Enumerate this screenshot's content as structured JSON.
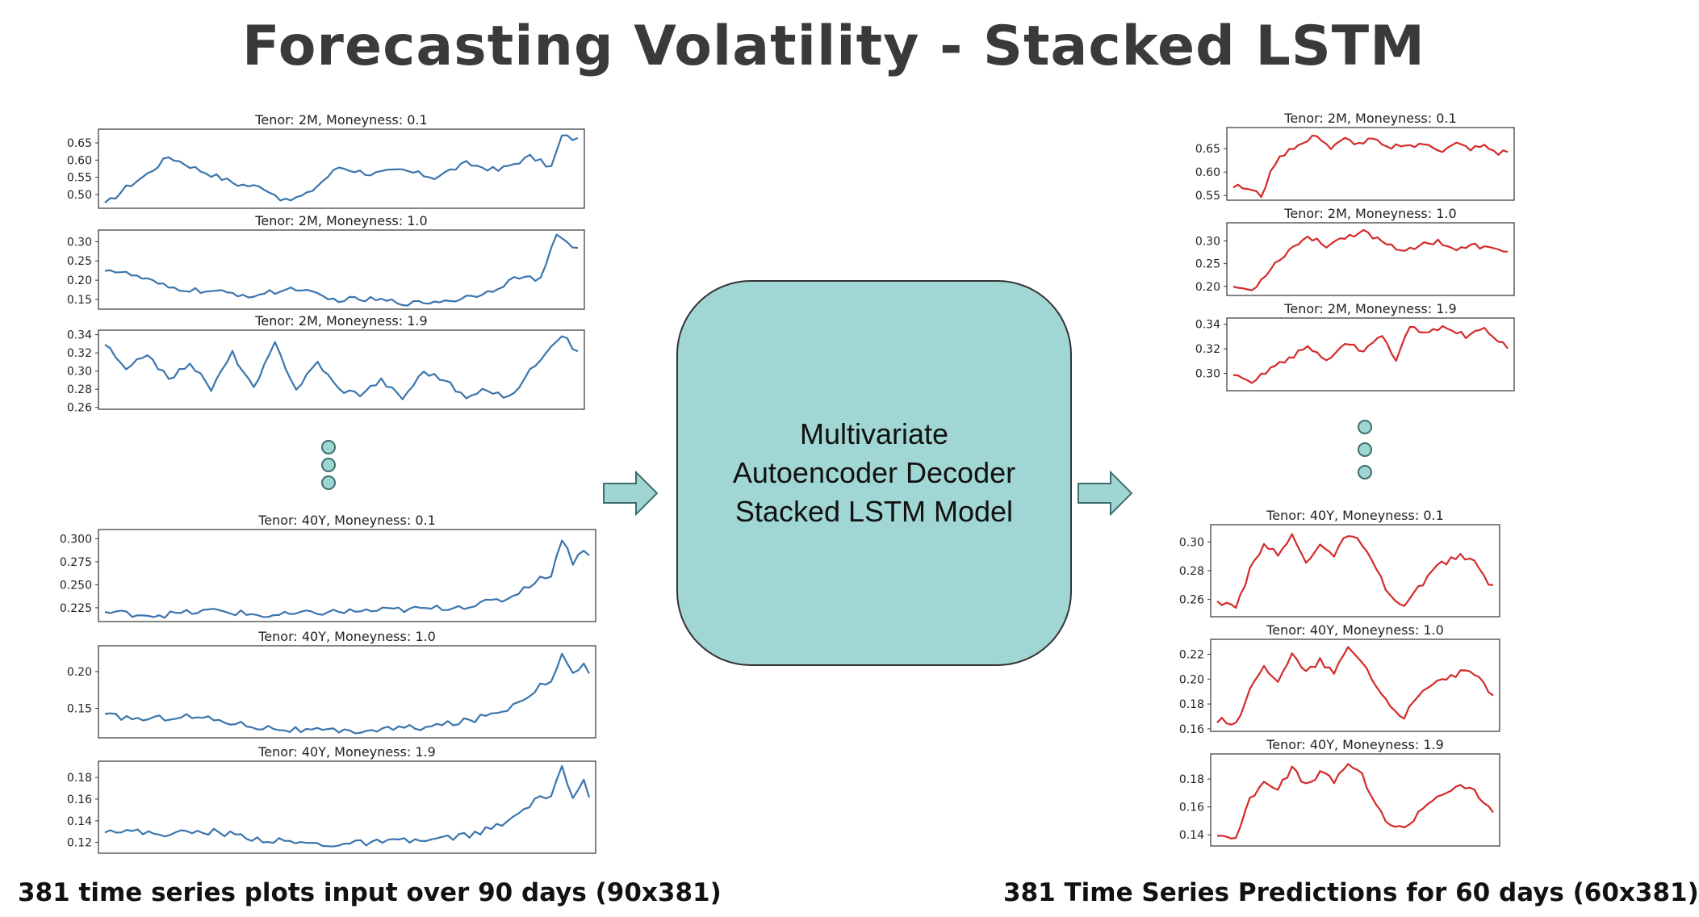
{
  "title": "Forecasting Volatility - Stacked LSTM",
  "model_label_lines": [
    "Multivariate",
    "Autoencoder Decoder",
    "Stacked LSTM Model"
  ],
  "caption_left": "381 time series plots input over 90 days (90x381)",
  "caption_right": "381 Time Series Predictions for 60 days (60x381)",
  "colors": {
    "input_line": "#3b75ad",
    "prediction_line": "#d42a2a",
    "model_fill": "#a0d6d3",
    "dot_fill": "#9fd6d4"
  },
  "chart_data": [
    {
      "type": "line",
      "group": "input",
      "title": "Tenor: 2M, Moneyness: 0.1",
      "yticks": [
        "0.50",
        "0.55",
        "0.60",
        "0.65"
      ],
      "ylim": [
        0.46,
        0.69
      ],
      "n": 90,
      "keys": [
        [
          0,
          0.47
        ],
        [
          4,
          0.52
        ],
        [
          8,
          0.56
        ],
        [
          12,
          0.61
        ],
        [
          18,
          0.57
        ],
        [
          25,
          0.53
        ],
        [
          30,
          0.52
        ],
        [
          34,
          0.48
        ],
        [
          38,
          0.5
        ],
        [
          44,
          0.58
        ],
        [
          50,
          0.56
        ],
        [
          56,
          0.57
        ],
        [
          62,
          0.55
        ],
        [
          68,
          0.59
        ],
        [
          74,
          0.57
        ],
        [
          80,
          0.61
        ],
        [
          84,
          0.58
        ],
        [
          86,
          0.67
        ],
        [
          89,
          0.66
        ]
      ]
    },
    {
      "type": "line",
      "group": "input",
      "title": "Tenor: 2M, Moneyness: 1.0",
      "yticks": [
        "0.15",
        "0.20",
        "0.25",
        "0.30"
      ],
      "ylim": [
        0.125,
        0.33
      ],
      "n": 90,
      "keys": [
        [
          0,
          0.23
        ],
        [
          6,
          0.21
        ],
        [
          12,
          0.18
        ],
        [
          20,
          0.17
        ],
        [
          28,
          0.16
        ],
        [
          36,
          0.18
        ],
        [
          42,
          0.15
        ],
        [
          50,
          0.15
        ],
        [
          58,
          0.14
        ],
        [
          66,
          0.15
        ],
        [
          72,
          0.17
        ],
        [
          78,
          0.21
        ],
        [
          82,
          0.2
        ],
        [
          85,
          0.32
        ],
        [
          89,
          0.28
        ]
      ]
    },
    {
      "type": "line",
      "group": "input",
      "title": "Tenor: 2M, Moneyness: 1.9",
      "yticks": [
        "0.26",
        "0.28",
        "0.30",
        "0.32",
        "0.34"
      ],
      "ylim": [
        0.258,
        0.345
      ],
      "n": 90,
      "keys": [
        [
          0,
          0.33
        ],
        [
          4,
          0.3
        ],
        [
          8,
          0.32
        ],
        [
          12,
          0.29
        ],
        [
          16,
          0.31
        ],
        [
          20,
          0.28
        ],
        [
          24,
          0.32
        ],
        [
          28,
          0.28
        ],
        [
          32,
          0.33
        ],
        [
          36,
          0.28
        ],
        [
          40,
          0.31
        ],
        [
          44,
          0.28
        ],
        [
          48,
          0.275
        ],
        [
          52,
          0.29
        ],
        [
          56,
          0.27
        ],
        [
          60,
          0.3
        ],
        [
          64,
          0.29
        ],
        [
          68,
          0.27
        ],
        [
          72,
          0.28
        ],
        [
          76,
          0.27
        ],
        [
          80,
          0.3
        ],
        [
          84,
          0.33
        ],
        [
          86,
          0.34
        ],
        [
          89,
          0.32
        ]
      ]
    },
    {
      "type": "line",
      "group": "input",
      "title": "Tenor: 40Y, Moneyness: 0.1",
      "yticks": [
        "0.225",
        "0.250",
        "0.275",
        "0.300"
      ],
      "ylim": [
        0.21,
        0.31
      ],
      "n": 90,
      "keys": [
        [
          0,
          0.22
        ],
        [
          10,
          0.217
        ],
        [
          20,
          0.222
        ],
        [
          30,
          0.216
        ],
        [
          40,
          0.22
        ],
        [
          50,
          0.222
        ],
        [
          60,
          0.224
        ],
        [
          68,
          0.228
        ],
        [
          74,
          0.235
        ],
        [
          78,
          0.25
        ],
        [
          82,
          0.262
        ],
        [
          84,
          0.3
        ],
        [
          86,
          0.275
        ],
        [
          88,
          0.29
        ],
        [
          89,
          0.28
        ]
      ]
    },
    {
      "type": "line",
      "group": "input",
      "title": "Tenor: 40Y, Moneyness: 1.0",
      "yticks": [
        "0.15",
        "0.20"
      ],
      "ylim": [
        0.11,
        0.235
      ],
      "n": 90,
      "keys": [
        [
          0,
          0.14
        ],
        [
          8,
          0.135
        ],
        [
          14,
          0.14
        ],
        [
          20,
          0.135
        ],
        [
          28,
          0.125
        ],
        [
          36,
          0.12
        ],
        [
          44,
          0.118
        ],
        [
          52,
          0.122
        ],
        [
          60,
          0.125
        ],
        [
          68,
          0.135
        ],
        [
          74,
          0.15
        ],
        [
          78,
          0.17
        ],
        [
          82,
          0.19
        ],
        [
          84,
          0.225
        ],
        [
          86,
          0.195
        ],
        [
          88,
          0.215
        ],
        [
          89,
          0.195
        ]
      ]
    },
    {
      "type": "line",
      "group": "input",
      "title": "Tenor: 40Y, Moneyness: 1.9",
      "yticks": [
        "0.12",
        "0.14",
        "0.16",
        "0.18"
      ],
      "ylim": [
        0.11,
        0.195
      ],
      "n": 90,
      "keys": [
        [
          0,
          0.132
        ],
        [
          10,
          0.128
        ],
        [
          20,
          0.13
        ],
        [
          30,
          0.122
        ],
        [
          40,
          0.118
        ],
        [
          50,
          0.12
        ],
        [
          60,
          0.122
        ],
        [
          68,
          0.128
        ],
        [
          74,
          0.138
        ],
        [
          78,
          0.155
        ],
        [
          82,
          0.165
        ],
        [
          84,
          0.19
        ],
        [
          86,
          0.16
        ],
        [
          88,
          0.175
        ],
        [
          89,
          0.16
        ]
      ]
    },
    {
      "type": "line",
      "group": "prediction",
      "title": "Tenor: 2M, Moneyness: 0.1",
      "yticks": [
        "0.55",
        "0.60",
        "0.65"
      ],
      "ylim": [
        0.54,
        0.695
      ],
      "n": 60,
      "keys": [
        [
          0,
          0.57
        ],
        [
          3,
          0.565
        ],
        [
          6,
          0.55
        ],
        [
          9,
          0.62
        ],
        [
          12,
          0.65
        ],
        [
          15,
          0.66
        ],
        [
          18,
          0.68
        ],
        [
          21,
          0.65
        ],
        [
          24,
          0.67
        ],
        [
          27,
          0.66
        ],
        [
          30,
          0.67
        ],
        [
          33,
          0.65
        ],
        [
          36,
          0.66
        ],
        [
          39,
          0.655
        ],
        [
          42,
          0.66
        ],
        [
          45,
          0.645
        ],
        [
          48,
          0.66
        ],
        [
          51,
          0.65
        ],
        [
          54,
          0.655
        ],
        [
          57,
          0.64
        ],
        [
          59,
          0.645
        ]
      ]
    },
    {
      "type": "line",
      "group": "prediction",
      "title": "Tenor: 2M, Moneyness: 1.0",
      "yticks": [
        "0.20",
        "0.25",
        "0.30"
      ],
      "ylim": [
        0.18,
        0.34
      ],
      "n": 60,
      "keys": [
        [
          0,
          0.2
        ],
        [
          4,
          0.19
        ],
        [
          8,
          0.24
        ],
        [
          12,
          0.28
        ],
        [
          16,
          0.31
        ],
        [
          20,
          0.29
        ],
        [
          24,
          0.31
        ],
        [
          28,
          0.32
        ],
        [
          32,
          0.3
        ],
        [
          36,
          0.28
        ],
        [
          40,
          0.29
        ],
        [
          44,
          0.3
        ],
        [
          48,
          0.28
        ],
        [
          52,
          0.29
        ],
        [
          56,
          0.28
        ],
        [
          59,
          0.28
        ]
      ]
    },
    {
      "type": "line",
      "group": "prediction",
      "title": "Tenor: 2M, Moneyness: 1.9",
      "yticks": [
        "0.30",
        "0.32",
        "0.34"
      ],
      "ylim": [
        0.286,
        0.345
      ],
      "n": 60,
      "keys": [
        [
          0,
          0.298
        ],
        [
          4,
          0.292
        ],
        [
          8,
          0.305
        ],
        [
          12,
          0.312
        ],
        [
          16,
          0.322
        ],
        [
          20,
          0.31
        ],
        [
          24,
          0.325
        ],
        [
          28,
          0.318
        ],
        [
          32,
          0.332
        ],
        [
          35,
          0.31
        ],
        [
          38,
          0.338
        ],
        [
          42,
          0.333
        ],
        [
          46,
          0.338
        ],
        [
          50,
          0.33
        ],
        [
          54,
          0.336
        ],
        [
          59,
          0.322
        ]
      ]
    },
    {
      "type": "line",
      "group": "prediction",
      "title": "Tenor: 40Y, Moneyness: 0.1",
      "yticks": [
        "0.26",
        "0.28",
        "0.30"
      ],
      "ylim": [
        0.248,
        0.312
      ],
      "n": 60,
      "keys": [
        [
          0,
          0.257
        ],
        [
          4,
          0.254
        ],
        [
          7,
          0.28
        ],
        [
          10,
          0.3
        ],
        [
          13,
          0.29
        ],
        [
          16,
          0.305
        ],
        [
          19,
          0.285
        ],
        [
          22,
          0.3
        ],
        [
          25,
          0.29
        ],
        [
          28,
          0.306
        ],
        [
          31,
          0.298
        ],
        [
          34,
          0.28
        ],
        [
          37,
          0.262
        ],
        [
          40,
          0.255
        ],
        [
          44,
          0.272
        ],
        [
          48,
          0.285
        ],
        [
          52,
          0.29
        ],
        [
          55,
          0.286
        ],
        [
          59,
          0.268
        ]
      ]
    },
    {
      "type": "line",
      "group": "prediction",
      "title": "Tenor: 40Y, Moneyness: 1.0",
      "yticks": [
        "0.16",
        "0.18",
        "0.20",
        "0.22"
      ],
      "ylim": [
        0.158,
        0.232
      ],
      "n": 60,
      "keys": [
        [
          0,
          0.167
        ],
        [
          4,
          0.165
        ],
        [
          7,
          0.19
        ],
        [
          10,
          0.21
        ],
        [
          13,
          0.2
        ],
        [
          16,
          0.22
        ],
        [
          19,
          0.205
        ],
        [
          22,
          0.215
        ],
        [
          25,
          0.205
        ],
        [
          28,
          0.225
        ],
        [
          31,
          0.215
        ],
        [
          34,
          0.195
        ],
        [
          37,
          0.178
        ],
        [
          40,
          0.17
        ],
        [
          44,
          0.19
        ],
        [
          48,
          0.2
        ],
        [
          52,
          0.205
        ],
        [
          55,
          0.205
        ],
        [
          59,
          0.185
        ]
      ]
    },
    {
      "type": "line",
      "group": "prediction",
      "title": "Tenor: 40Y, Moneyness: 1.9",
      "yticks": [
        "0.14",
        "0.16",
        "0.18"
      ],
      "ylim": [
        0.132,
        0.198
      ],
      "n": 60,
      "keys": [
        [
          0,
          0.14
        ],
        [
          4,
          0.138
        ],
        [
          7,
          0.165
        ],
        [
          10,
          0.18
        ],
        [
          13,
          0.172
        ],
        [
          16,
          0.188
        ],
        [
          19,
          0.175
        ],
        [
          22,
          0.185
        ],
        [
          25,
          0.178
        ],
        [
          28,
          0.192
        ],
        [
          31,
          0.182
        ],
        [
          34,
          0.16
        ],
        [
          37,
          0.148
        ],
        [
          40,
          0.144
        ],
        [
          44,
          0.16
        ],
        [
          48,
          0.17
        ],
        [
          52,
          0.174
        ],
        [
          55,
          0.172
        ],
        [
          59,
          0.155
        ]
      ]
    }
  ]
}
